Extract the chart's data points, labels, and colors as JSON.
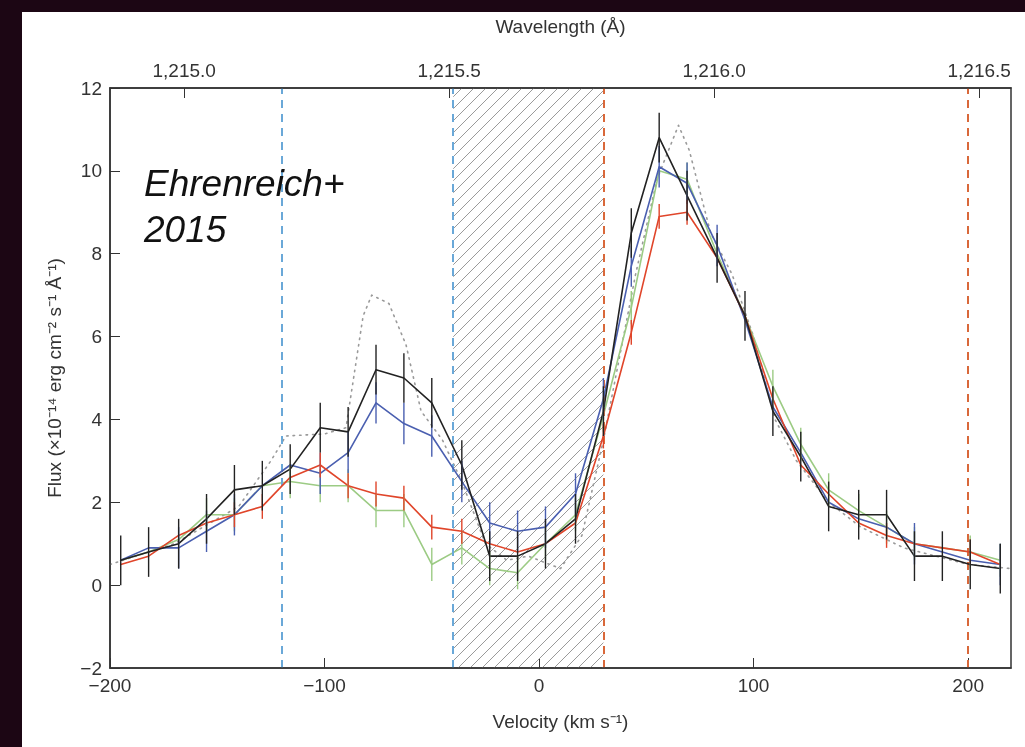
{
  "chart_data": {
    "type": "line",
    "xlabel": "Velocity (km s⁻¹)",
    "x2label": "Wavelength (Å)",
    "ylabel": "Flux (×10⁻¹⁴ erg cm⁻² s⁻¹ Å⁻¹)",
    "annotations": [
      "Ehrenreich+ 2015"
    ],
    "x": [
      -195,
      -182,
      -168,
      -155,
      -142,
      -129,
      -116,
      -102,
      -89,
      -76,
      -63,
      -50,
      -36,
      -23,
      -10,
      3,
      17,
      30,
      43,
      56,
      69,
      83,
      96,
      109,
      122,
      135,
      149,
      162,
      175,
      188,
      201,
      215
    ],
    "series": [
      {
        "line_style": "dotted",
        "marker": "none",
        "color": "#9a9a9a",
        "x": [
          -200,
          -170,
          -140,
          -125,
          -118,
          -100,
          -90,
          -82,
          -78,
          -70,
          -62,
          -55,
          -45,
          -36,
          -25,
          -15,
          -5,
          10,
          20,
          30,
          45,
          55,
          65,
          70,
          80,
          90,
          100,
          110,
          120,
          135,
          150,
          170,
          200,
          220
        ],
        "values": [
          0.5,
          1.0,
          1.9,
          3.0,
          3.6,
          3.65,
          3.8,
          6.5,
          7.0,
          6.8,
          5.8,
          4.2,
          3.5,
          2.5,
          1.0,
          0.6,
          0.7,
          0.4,
          1.2,
          3.5,
          7.5,
          9.8,
          11.1,
          10.5,
          8.5,
          7.5,
          6.0,
          4.0,
          3.0,
          2.0,
          1.4,
          0.9,
          0.5,
          0.4
        ]
      },
      {
        "line_style": "solid",
        "marker": "none",
        "color": "#9ccb84",
        "values": [
          0.6,
          0.8,
          1.1,
          1.7,
          1.7,
          2.4,
          2.5,
          2.4,
          2.4,
          1.8,
          1.8,
          0.5,
          0.9,
          0.4,
          0.3,
          1.0,
          1.7,
          4.1,
          6.7,
          10.0,
          9.8,
          8.0,
          6.5,
          4.8,
          3.4,
          2.3,
          1.8,
          1.4,
          1.0,
          0.9,
          0.8,
          0.6
        ],
        "errors": [
          null,
          null,
          null,
          0.4,
          0.4,
          null,
          0.4,
          0.4,
          0.4,
          0.4,
          0.4,
          0.4,
          0.4,
          0.4,
          0.4,
          0.4,
          0.4,
          0.4,
          0.4,
          null,
          0.4,
          null,
          null,
          0.4,
          0.4,
          0.4,
          0.4,
          0.4,
          0.4,
          null,
          0.4,
          0.4
        ]
      },
      {
        "line_style": "solid",
        "marker": "none",
        "color": "#4a5fb0",
        "values": [
          0.6,
          0.9,
          0.9,
          1.3,
          1.7,
          2.4,
          2.9,
          2.7,
          3.2,
          4.4,
          3.9,
          3.6,
          2.5,
          1.5,
          1.3,
          1.4,
          2.2,
          4.5,
          7.7,
          10.1,
          9.7,
          8.2,
          6.4,
          4.3,
          3.2,
          2.0,
          1.6,
          1.4,
          1.0,
          0.8,
          0.6,
          0.5
        ],
        "errors": [
          null,
          null,
          0.5,
          0.5,
          0.5,
          null,
          null,
          0.5,
          0.5,
          0.5,
          0.5,
          0.5,
          0.5,
          0.5,
          0.5,
          0.5,
          0.5,
          0.5,
          0.5,
          0.5,
          0.5,
          0.5,
          null,
          null,
          null,
          null,
          null,
          null,
          0.5,
          null,
          null,
          0.5
        ]
      },
      {
        "line_style": "solid",
        "marker": "none",
        "color": "#e0452a",
        "values": [
          0.5,
          0.7,
          1.2,
          1.5,
          1.7,
          1.9,
          2.6,
          2.9,
          2.4,
          2.2,
          2.1,
          1.4,
          1.3,
          1.0,
          0.8,
          1.0,
          1.5,
          3.6,
          6.1,
          8.9,
          9.0,
          7.9,
          6.5,
          4.5,
          2.9,
          2.2,
          1.5,
          1.2,
          1.0,
          0.9,
          0.8,
          0.5
        ],
        "errors": [
          null,
          null,
          null,
          null,
          0.3,
          0.3,
          null,
          0.3,
          0.3,
          0.3,
          0.3,
          0.3,
          0.3,
          null,
          null,
          null,
          null,
          0.3,
          0.3,
          0.3,
          0.3,
          null,
          null,
          null,
          null,
          null,
          null,
          0.3,
          null,
          null,
          0.3,
          null
        ]
      },
      {
        "line_style": "solid",
        "marker": "none",
        "color": "#222222",
        "values": [
          0.6,
          0.8,
          1.0,
          1.6,
          2.3,
          2.4,
          2.8,
          3.8,
          3.7,
          5.2,
          5.0,
          4.4,
          2.9,
          0.7,
          0.7,
          1.0,
          1.6,
          4.2,
          8.5,
          10.8,
          9.4,
          7.9,
          6.5,
          4.2,
          3.1,
          1.9,
          1.7,
          1.7,
          0.7,
          0.7,
          0.5,
          0.4
        ],
        "errors": [
          0.6,
          0.6,
          0.6,
          0.6,
          0.6,
          0.6,
          0.6,
          0.6,
          0.6,
          0.6,
          0.6,
          0.6,
          0.6,
          0.6,
          0.6,
          0.6,
          0.6,
          0.6,
          0.6,
          0.6,
          0.6,
          0.6,
          0.6,
          0.6,
          0.6,
          0.6,
          0.6,
          0.6,
          0.6,
          0.6,
          0.6,
          0.6
        ]
      }
    ],
    "xlim": [
      -200,
      220
    ],
    "xticks": [
      -200,
      -100,
      0,
      100,
      200
    ],
    "x2lim": [
      1214.86,
      1216.56
    ],
    "x2ticks": [
      {
        "value": 1215.0,
        "label": "1,215.0"
      },
      {
        "value": 1215.5,
        "label": "1,215.5"
      },
      {
        "value": 1216.0,
        "label": "1,216.0"
      },
      {
        "value": 1216.5,
        "label": "1,216.5"
      }
    ],
    "ylim": [
      -2,
      12
    ],
    "yticks": [
      -2,
      0,
      2,
      4,
      6,
      8,
      10,
      12
    ],
    "grid": false,
    "ref_lines": [
      {
        "axis": "x",
        "value": -120,
        "color": "#6aa8d8",
        "line_style": "dashed"
      },
      {
        "axis": "x",
        "value": -40,
        "color": "#6aa8d8",
        "line_style": "dashed"
      },
      {
        "axis": "x",
        "value": 30,
        "color": "#d9683a",
        "line_style": "dashed"
      },
      {
        "axis": "x",
        "value": 200,
        "color": "#d9683a",
        "line_style": "dashed"
      }
    ],
    "bands": [
      {
        "axis": "x",
        "from": -40,
        "to": 30,
        "color": "#9a9a9a"
      }
    ]
  }
}
